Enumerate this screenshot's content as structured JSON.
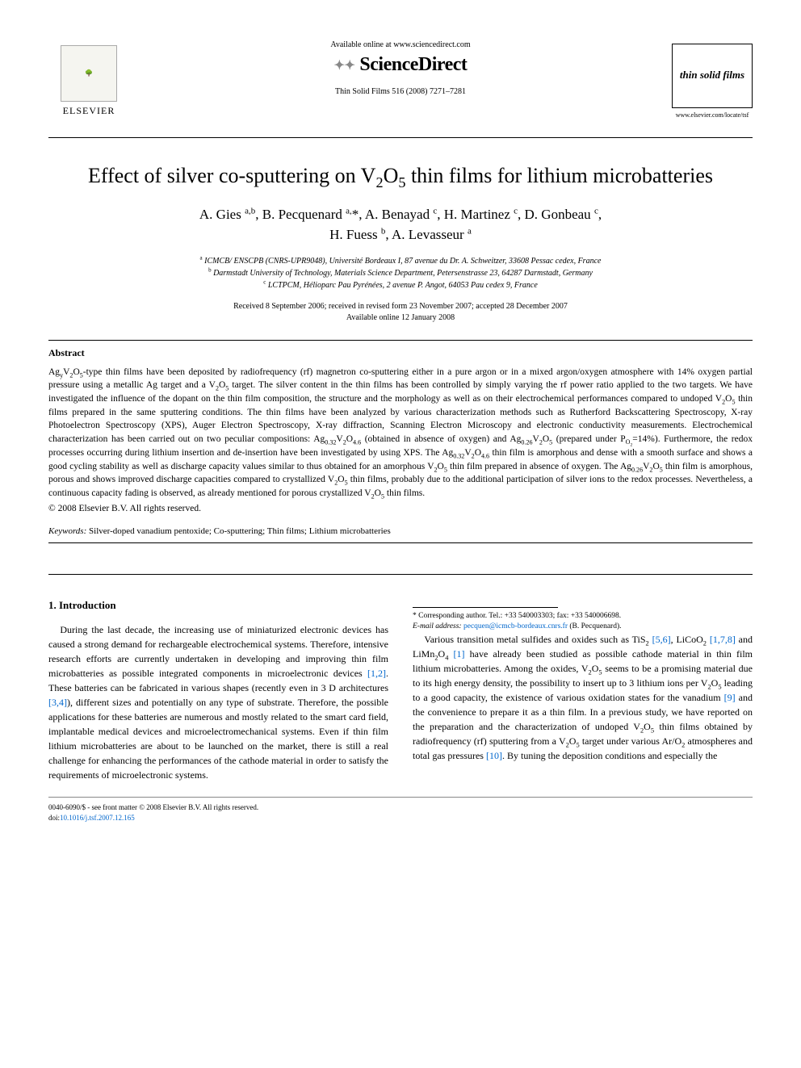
{
  "header": {
    "elsevier_label": "ELSEVIER",
    "available_online": "Available online at www.sciencedirect.com",
    "sciencedirect": "ScienceDirect",
    "citation": "Thin Solid Films 516 (2008) 7271–7281",
    "tsf_logo_text": "thin solid films",
    "tsf_url": "www.elsevier.com/locate/tsf"
  },
  "title_html": "Effect of silver co-sputtering on V<sub>2</sub>O<sub>5</sub> thin films for lithium microbatteries",
  "authors_html": "A. Gies <sup>a,b</sup>, B. Pecquenard <sup>a,</sup>*, A. Benayad <sup>c</sup>, H. Martinez <sup>c</sup>, D. Gonbeau <sup>c</sup>,<br>H. Fuess <sup>b</sup>, A. Levasseur <sup>a</sup>",
  "affiliations": [
    "<sup>a</sup> ICMCB/ ENSCPB (CNRS-UPR9048), Université Bordeaux I, 87 avenue du Dr. A. Schweitzer, 33608 Pessac cedex, France",
    "<sup>b</sup> Darmstadt University of Technology, Materials Science Department, Petersenstrasse 23, 64287 Darmstadt, Germany",
    "<sup>c</sup> LCTPCM, Hélioparc Pau Pyrénées, 2 avenue P. Angot, 64053 Pau cedex 9, France"
  ],
  "dates": {
    "received": "Received 8 September 2006; received in revised form 23 November 2007; accepted 28 December 2007",
    "available": "Available online 12 January 2008"
  },
  "abstract": {
    "label": "Abstract",
    "text_html": "Ag<sub>y</sub>V<sub>2</sub>O<sub>5</sub>-type thin films have been deposited by radiofrequency (rf) magnetron co-sputtering either in a pure argon or in a mixed argon/oxygen atmosphere with 14% oxygen partial pressure using a metallic Ag target and a V<sub>2</sub>O<sub>5</sub> target. The silver content in the thin films has been controlled by simply varying the rf power ratio applied to the two targets. We have investigated the influence of the dopant on the thin film composition, the structure and the morphology as well as on their electrochemical performances compared to undoped V<sub>2</sub>O<sub>5</sub> thin films prepared in the same sputtering conditions. The thin films have been analyzed by various characterization methods such as Rutherford Backscattering Spectroscopy, X-ray Photoelectron Spectroscopy (XPS), Auger Electron Spectroscopy, X-ray diffraction, Scanning Electron Microscopy and electronic conductivity measurements. Electrochemical characterization has been carried out on two peculiar compositions: Ag<sub>0.32</sub>V<sub>2</sub>O<sub>4.6</sub> (obtained in absence of oxygen) and Ag<sub>0.26</sub>V<sub>2</sub>O<sub>5</sub> (prepared under P<sub>O<sub>2</sub></sub>=14%). Furthermore, the redox processes occurring during lithium insertion and de-insertion have been investigated by using XPS. The Ag<sub>0.32</sub>V<sub>2</sub>O<sub>4.6</sub> thin film is amorphous and dense with a smooth surface and shows a good cycling stability as well as discharge capacity values similar to thus obtained for an amorphous V<sub>2</sub>O<sub>5</sub> thin film prepared in absence of oxygen. The Ag<sub>0.26</sub>V<sub>2</sub>O<sub>5</sub> thin film is amorphous, porous and shows improved discharge capacities compared to crystallized V<sub>2</sub>O<sub>5</sub> thin films, probably due to the additional participation of silver ions to the redox processes. Nevertheless, a continuous capacity fading is observed, as already mentioned for porous crystallized V<sub>2</sub>O<sub>5</sub> thin films.",
    "copyright": "© 2008 Elsevier B.V. All rights reserved."
  },
  "keywords": {
    "label": "Keywords:",
    "text": "Silver-doped vanadium pentoxide; Co-sputtering; Thin films; Lithium microbatteries"
  },
  "intro": {
    "heading": "1. Introduction",
    "para1_html": "During the last decade, the increasing use of miniaturized electronic devices has caused a strong demand for rechargeable electrochemical systems. Therefore, intensive research efforts are currently undertaken in developing and improving thin film microbatteries as possible integrated components in microelectronic devices <span class=\"ref-link\">[1,2]</span>. These batteries can be fabricated in various shapes (recently even in 3 D architectures <span class=\"ref-link\">[3,4]</span>), different sizes and potentially on any type of substrate. Therefore, the possible applications for these batteries are numerous and mostly related to the smart card field, implantable medical devices and microelectromechanical systems. Even if thin film lithium microbatteries are about to be launched on the market, there is still a real challenge for enhancing the performances of the cathode material in order to satisfy the requirements of microelectronic systems.",
    "para2_html": "Various transition metal sulfides and oxides such as TiS<sub>2</sub> <span class=\"ref-link\">[5,6]</span>, LiCoO<sub>2</sub> <span class=\"ref-link\">[1,7,8]</span> and LiMn<sub>2</sub>O<sub>4</sub> <span class=\"ref-link\">[1]</span> have already been studied as possible cathode material in thin film lithium microbatteries. Among the oxides, V<sub>2</sub>O<sub>5</sub> seems to be a promising material due to its high energy density, the possibility to insert up to 3 lithium ions per V<sub>2</sub>O<sub>5</sub> leading to a good capacity, the existence of various oxidation states for the vanadium <span class=\"ref-link\">[9]</span> and the convenience to prepare it as a thin film. In a previous study, we have reported on the preparation and the characterization of undoped V<sub>2</sub>O<sub>5</sub> thin films obtained by radiofrequency (rf) sputtering from a V<sub>2</sub>O<sub>5</sub> target under various Ar/O<sub>2</sub> atmospheres and total gas pressures <span class=\"ref-link\">[10]</span>. By tuning the deposition conditions and especially the"
  },
  "footnote": {
    "corr_label": "* Corresponding author. Tel.: +33 540003303; fax: +33 540006698.",
    "email_label": "E-mail address:",
    "email": "pecquen@icmcb-bordeaux.cnrs.fr",
    "email_who": "(B. Pecquenard)."
  },
  "front_matter": {
    "line1": "0040-6090/$ - see front matter © 2008 Elsevier B.V. All rights reserved.",
    "doi_label": "doi:",
    "doi": "10.1016/j.tsf.2007.12.165"
  },
  "colors": {
    "text": "#000000",
    "link": "#0066cc",
    "background": "#ffffff",
    "divider": "#000000"
  },
  "typography": {
    "title_fontsize_pt": 20,
    "body_fontsize_pt": 9,
    "abstract_fontsize_pt": 9,
    "author_fontsize_pt": 13,
    "font_family": "Times/Georgia serif"
  }
}
